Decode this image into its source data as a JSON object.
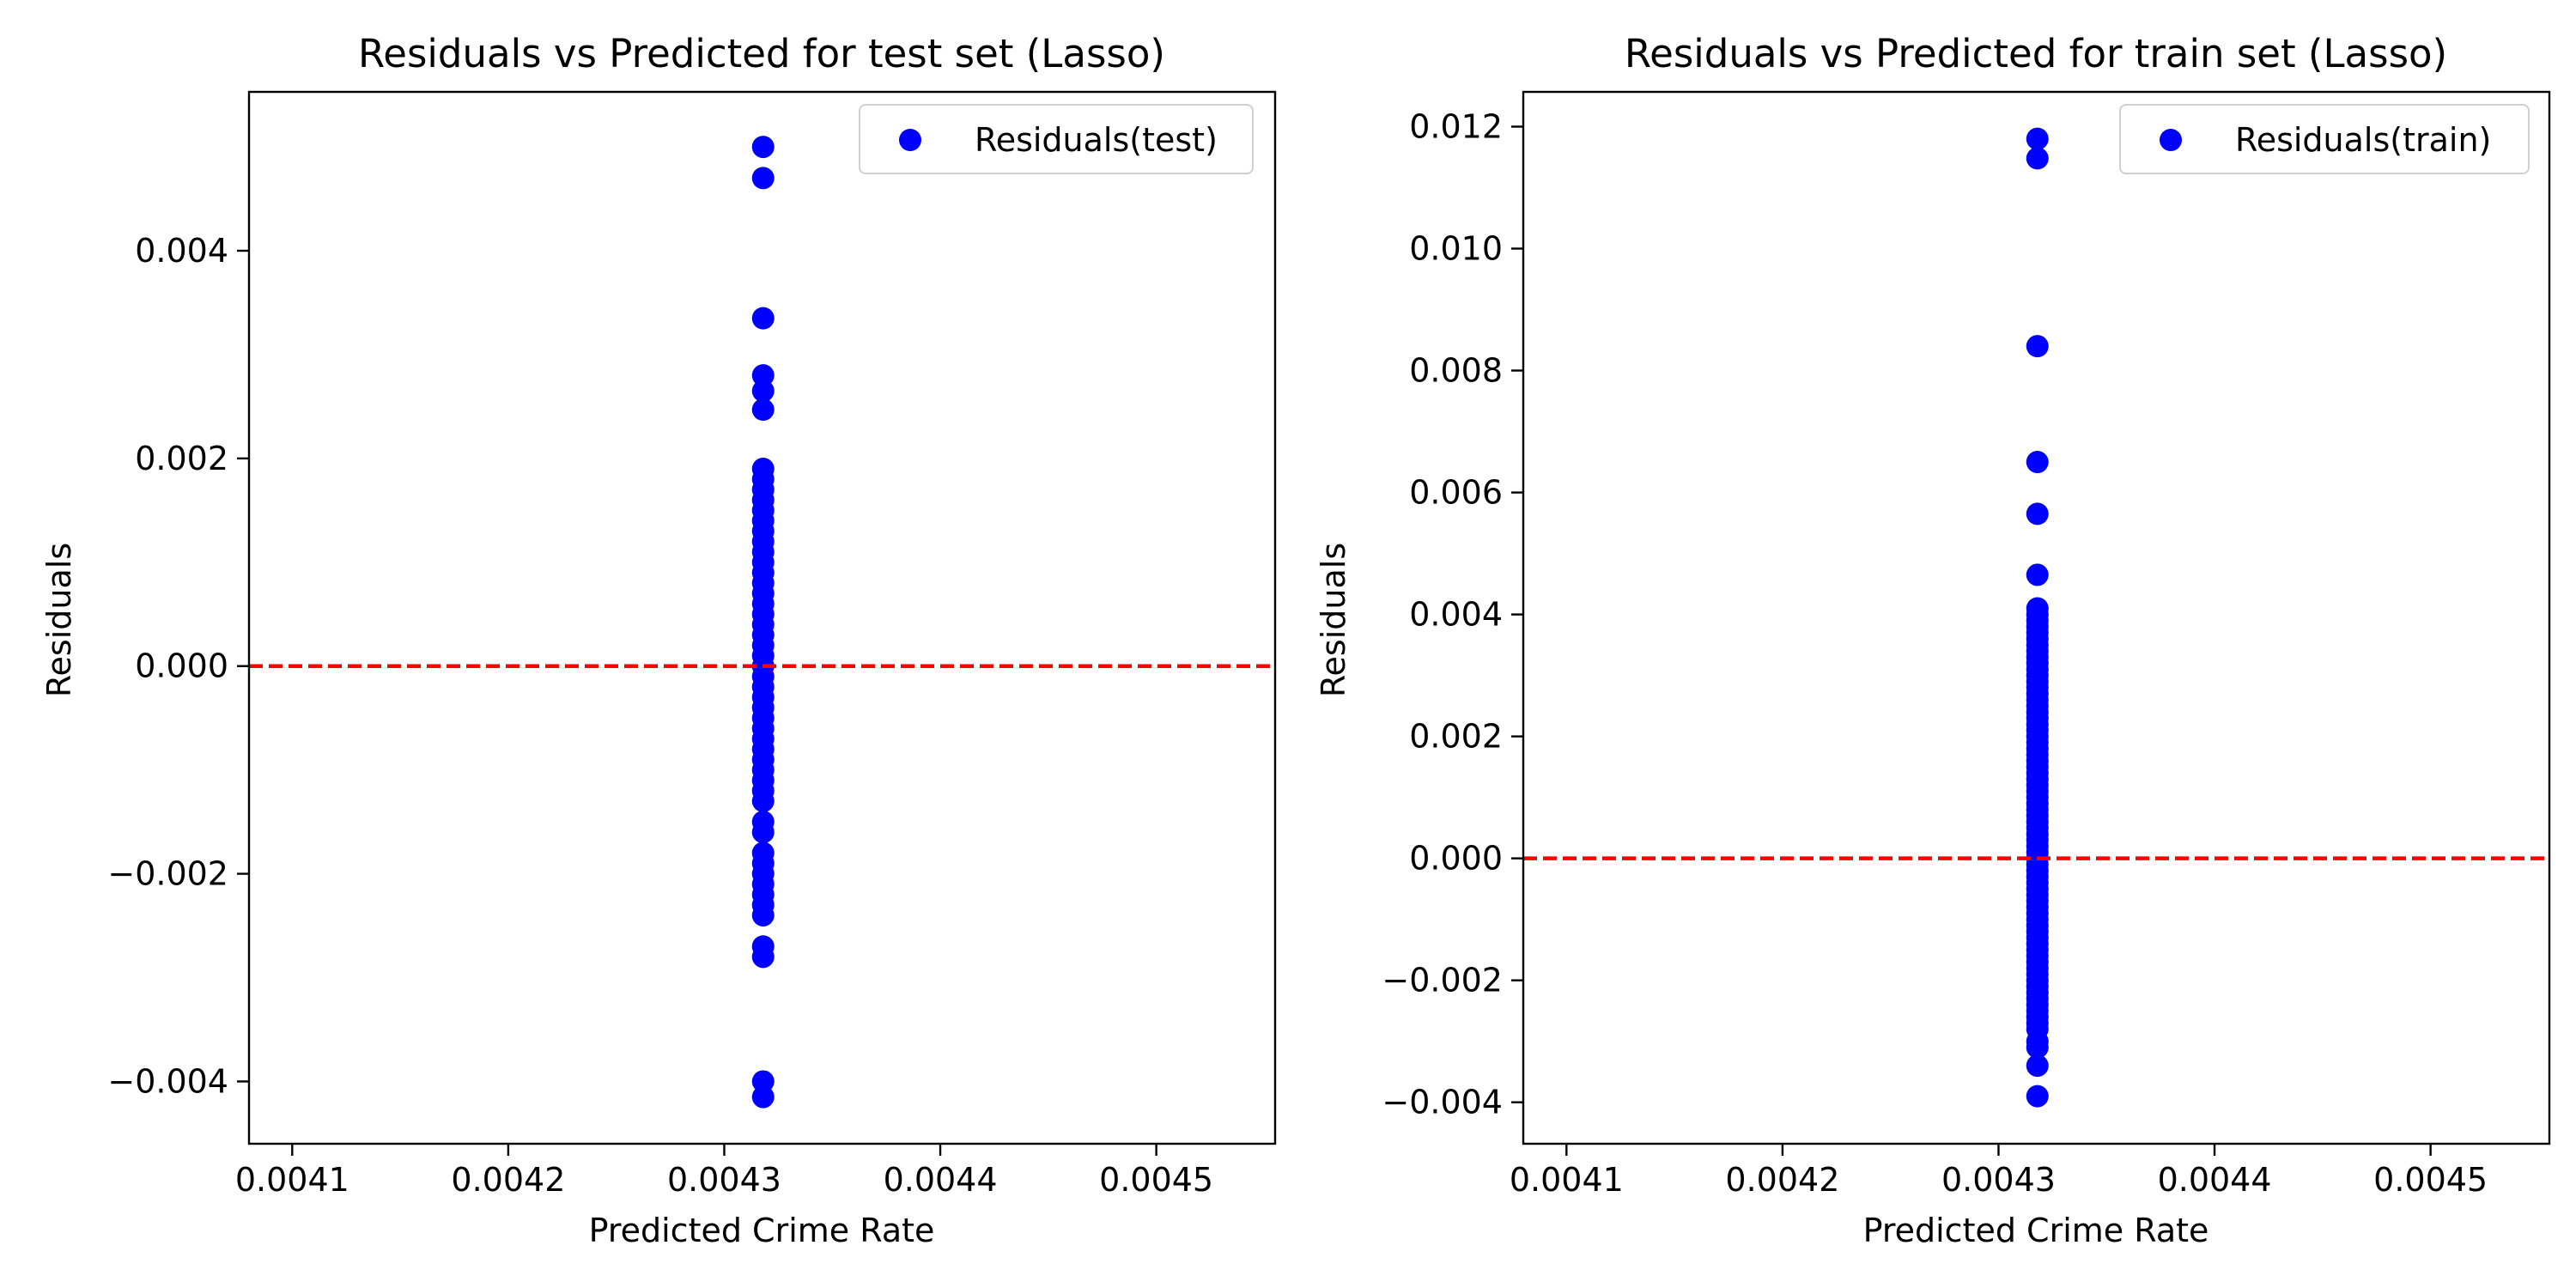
{
  "colors": {
    "points": "#0000ff",
    "zero_line": "#ff0000",
    "axes": "#000000",
    "background": "#ffffff"
  },
  "chart_data": [
    {
      "type": "scatter",
      "title": "Residuals vs Predicted for test set (Lasso)",
      "xlabel": "Predicted Crime Rate",
      "ylabel": "Residuals",
      "xlim": [
        0.00408,
        0.004555
      ],
      "ylim": [
        -0.0046,
        0.00553
      ],
      "xticks": [
        0.0041,
        0.0042,
        0.0043,
        0.0044,
        0.0045
      ],
      "xtick_labels": [
        "0.0041",
        "0.0042",
        "0.0043",
        "0.0044",
        "0.0045"
      ],
      "yticks": [
        -0.004,
        -0.002,
        0.0,
        0.002,
        0.004
      ],
      "ytick_labels": [
        "−0.004",
        "−0.002",
        "0.000",
        "0.002",
        "0.004"
      ],
      "grid": false,
      "legend": "top-right",
      "reference_line": {
        "y": 0,
        "style": "dashed"
      },
      "series": [
        {
          "name": "Residuals(test)",
          "x_value": 0.004318,
          "y": [
            0.005,
            0.0047,
            0.00335,
            0.0028,
            0.00265,
            0.00247,
            0.0019,
            0.0018,
            0.0017,
            0.0016,
            0.0015,
            0.0014,
            0.0013,
            0.0012,
            0.0011,
            0.001,
            0.0009,
            0.0008,
            0.0007,
            0.0006,
            0.0005,
            0.0004,
            0.0003,
            0.0002,
            0.0001,
            0.0,
            -0.0001,
            -0.0002,
            -0.0003,
            -0.0004,
            -0.0005,
            -0.0006,
            -0.0007,
            -0.0008,
            -0.0009,
            -0.001,
            -0.0011,
            -0.0012,
            -0.0013,
            -0.0015,
            -0.0016,
            -0.0018,
            -0.0019,
            -0.002,
            -0.0021,
            -0.0022,
            -0.0023,
            -0.0024,
            -0.0027,
            -0.0028,
            -0.004,
            -0.00415
          ]
        }
      ]
    },
    {
      "type": "scatter",
      "title": "Residuals vs Predicted for train set (Lasso)",
      "xlabel": "Predicted Crime Rate",
      "ylabel": "Residuals",
      "xlim": [
        0.00408,
        0.004555
      ],
      "ylim": [
        -0.00468,
        0.01257
      ],
      "xticks": [
        0.0041,
        0.0042,
        0.0043,
        0.0044,
        0.0045
      ],
      "xtick_labels": [
        "0.0041",
        "0.0042",
        "0.0043",
        "0.0044",
        "0.0045"
      ],
      "yticks": [
        -0.004,
        -0.002,
        0.0,
        0.002,
        0.004,
        0.006,
        0.008,
        0.01,
        0.012
      ],
      "ytick_labels": [
        "−0.004",
        "−0.002",
        "0.000",
        "0.002",
        "0.004",
        "0.006",
        "0.008",
        "0.010",
        "0.012"
      ],
      "grid": false,
      "legend": "top-right",
      "reference_line": {
        "y": 0,
        "style": "dashed"
      },
      "series": [
        {
          "name": "Residuals(train)",
          "x_value": 0.004318,
          "y": [
            0.0118,
            0.01148,
            0.0084,
            0.0065,
            0.00565,
            0.00465,
            0.0041,
            0.004,
            0.0039,
            0.0038,
            0.0037,
            0.0036,
            0.0035,
            0.0034,
            0.0033,
            0.0032,
            0.0031,
            0.003,
            0.0029,
            0.0028,
            0.0027,
            0.0026,
            0.0025,
            0.0024,
            0.0023,
            0.0022,
            0.0021,
            0.002,
            0.0019,
            0.0018,
            0.0017,
            0.0016,
            0.0015,
            0.0014,
            0.0013,
            0.0012,
            0.0011,
            0.001,
            0.0009,
            0.0008,
            0.0007,
            0.0006,
            0.0005,
            0.0004,
            0.0003,
            0.0002,
            0.0001,
            0.0,
            -0.0001,
            -0.0002,
            -0.0003,
            -0.0004,
            -0.0005,
            -0.0006,
            -0.0007,
            -0.0008,
            -0.0009,
            -0.001,
            -0.0011,
            -0.0012,
            -0.0013,
            -0.0014,
            -0.0015,
            -0.0016,
            -0.0017,
            -0.0018,
            -0.0019,
            -0.002,
            -0.0021,
            -0.0022,
            -0.0023,
            -0.0024,
            -0.0025,
            -0.0026,
            -0.0027,
            -0.0028,
            -0.003,
            -0.0031,
            -0.0034,
            -0.0039
          ]
        }
      ]
    }
  ]
}
